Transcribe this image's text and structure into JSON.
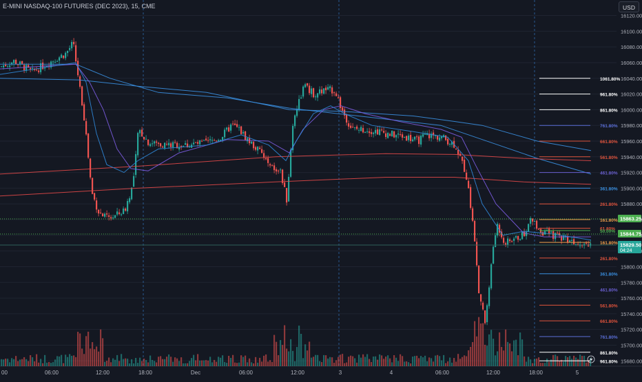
{
  "header": {
    "title": "E-MINI NASDAQ-100 FUTURES (DEC 2023), 15, CME",
    "currency_button": "USD"
  },
  "colors": {
    "background": "#141822",
    "up": "#26a69a",
    "down": "#ef5350",
    "grid": "#1f2431",
    "axis_text": "#b2b5be",
    "session_divider": "#2f6fb5",
    "price_line_green": "#4caf50"
  },
  "chart_data": {
    "type": "candlestick",
    "title": "E-MINI NASDAQ-100 FUTURES (DEC 2023), 15, CME",
    "y_axis_ticks": [
      16120,
      16100,
      16080,
      16060,
      16040,
      16020,
      16000,
      15980,
      15960,
      15940,
      15920,
      15900,
      15880,
      15860,
      15840,
      15820,
      15800,
      15780,
      15760,
      15740,
      15720,
      15700,
      15680
    ],
    "y_range": [
      15675,
      16131
    ],
    "x_axis_labels": [
      "00",
      "06:00",
      "12:00",
      "18:00",
      "Dec",
      "06:00",
      "12:00",
      "3",
      "4",
      "06:00",
      "12:00",
      "18:00",
      "5"
    ],
    "price_labels": [
      {
        "value": "15863.25",
        "color": "#4caf50"
      },
      {
        "value": "15844.75",
        "color": "#4caf50"
      },
      {
        "value": "15829.50",
        "sub": "04:24",
        "color": "#26a69a"
      }
    ],
    "fib_levels": [
      {
        "label": "1061.80%",
        "price": 16040,
        "color": "#ffffff"
      },
      {
        "label": "961.80%",
        "price": 16020,
        "color": "#ffffff"
      },
      {
        "label": "861.80%",
        "price": 16000,
        "color": "#ffffff"
      },
      {
        "label": "761.80%",
        "price": 15980,
        "color": "#5b6fd8"
      },
      {
        "label": "661.80%",
        "price": 15960,
        "color": "#e0533c"
      },
      {
        "label": "561.80%",
        "price": 15940,
        "color": "#e0533c"
      },
      {
        "label": "461.80%",
        "price": 15920,
        "color": "#6a5fd0"
      },
      {
        "label": "361.80%",
        "price": 15900,
        "color": "#3a8fe0"
      },
      {
        "label": "261.80%",
        "price": 15880,
        "color": "#e0533c"
      },
      {
        "label": "161.80%",
        "price": 15860,
        "color": "#f0a04b"
      },
      {
        "label": "61.80%",
        "price": 15849,
        "color": "#e0533c"
      },
      {
        "label": "50.00%",
        "price": 15846,
        "color": "#4caf50"
      },
      {
        "label": "161.80%",
        "price": 15831,
        "color": "#f0a04b"
      },
      {
        "label": "261.80%",
        "price": 15811,
        "color": "#e0533c"
      },
      {
        "label": "361.80%",
        "price": 15791,
        "color": "#3a8fe0"
      },
      {
        "label": "461.80%",
        "price": 15771,
        "color": "#6a5fd0"
      },
      {
        "label": "561.80%",
        "price": 15751,
        "color": "#e0533c"
      },
      {
        "label": "661.80%",
        "price": 15731,
        "color": "#e0533c"
      },
      {
        "label": "761.80%",
        "price": 15711,
        "color": "#5b6fd8"
      },
      {
        "label": "861.80%",
        "price": 15691,
        "color": "#ffffff"
      },
      {
        "label": "961.80%",
        "price": 15680,
        "color": "#ffffff"
      }
    ],
    "segments": [
      [
        0,
        16055
      ],
      [
        20,
        16062
      ],
      [
        45,
        16048
      ],
      [
        70,
        16060
      ],
      [
        95,
        16072
      ],
      [
        105,
        16085
      ],
      [
        112,
        16045
      ],
      [
        122,
        15985
      ],
      [
        132,
        15895
      ],
      [
        142,
        15870
      ],
      [
        152,
        15862
      ],
      [
        165,
        15864
      ],
      [
        180,
        15872
      ],
      [
        192,
        15905
      ],
      [
        200,
        15975
      ],
      [
        215,
        15958
      ],
      [
        245,
        15955
      ],
      [
        270,
        15955
      ],
      [
        300,
        15958
      ],
      [
        320,
        15965
      ],
      [
        335,
        15980
      ],
      [
        345,
        15976
      ],
      [
        360,
        15960
      ],
      [
        378,
        15945
      ],
      [
        392,
        15925
      ],
      [
        405,
        15925
      ],
      [
        415,
        15885
      ],
      [
        425,
        15990
      ],
      [
        440,
        16030
      ],
      [
        455,
        16020
      ],
      [
        470,
        16025
      ],
      [
        485,
        16025
      ],
      [
        495,
        16000
      ],
      [
        510,
        15975
      ],
      [
        530,
        15975
      ],
      [
        550,
        15972
      ],
      [
        570,
        15968
      ],
      [
        590,
        15965
      ],
      [
        605,
        15960
      ],
      [
        618,
        15968
      ],
      [
        640,
        15965
      ],
      [
        660,
        15955
      ],
      [
        675,
        15920
      ],
      [
        685,
        15860
      ],
      [
        695,
        15760
      ],
      [
        703,
        15730
      ],
      [
        712,
        15800
      ],
      [
        720,
        15855
      ],
      [
        732,
        15830
      ],
      [
        745,
        15835
      ],
      [
        758,
        15840
      ],
      [
        770,
        15860
      ],
      [
        785,
        15845
      ],
      [
        800,
        15840
      ],
      [
        815,
        15838
      ],
      [
        830,
        15833
      ],
      [
        845,
        15831
      ],
      [
        858,
        15829
      ]
    ],
    "moving_averages": [
      {
        "color": "#3a8fe0",
        "points": [
          [
            0,
            16040
          ],
          [
            115,
            16038
          ],
          [
            200,
            16030
          ],
          [
            300,
            16022
          ],
          [
            420,
            16000
          ],
          [
            495,
            15998
          ],
          [
            600,
            15992
          ],
          [
            660,
            15985
          ],
          [
            700,
            15980
          ],
          [
            780,
            15960
          ],
          [
            858,
            15948
          ]
        ]
      },
      {
        "color": "#3a8fe0",
        "points": [
          [
            0,
            16058
          ],
          [
            110,
            16058
          ],
          [
            160,
            16040
          ],
          [
            230,
            16022
          ],
          [
            330,
            16015
          ],
          [
            420,
            16002
          ],
          [
            540,
            15990
          ],
          [
            640,
            15980
          ],
          [
            700,
            15962
          ],
          [
            780,
            15938
          ],
          [
            858,
            15918
          ]
        ]
      },
      {
        "color": "#e04848",
        "points": [
          [
            0,
            15918
          ],
          [
            200,
            15928
          ],
          [
            400,
            15940
          ],
          [
            560,
            15944
          ],
          [
            660,
            15943
          ],
          [
            760,
            15938
          ],
          [
            858,
            15935
          ]
        ]
      },
      {
        "color": "#e04848",
        "points": [
          [
            0,
            15890
          ],
          [
            200,
            15900
          ],
          [
            400,
            15908
          ],
          [
            560,
            15914
          ],
          [
            660,
            15914
          ],
          [
            760,
            15908
          ],
          [
            858,
            15905
          ]
        ]
      },
      {
        "color": "#7b5ce0",
        "points": [
          [
            0,
            16052
          ],
          [
            110,
            16058
          ],
          [
            130,
            16035
          ],
          [
            150,
            16000
          ],
          [
            170,
            15950
          ],
          [
            190,
            15925
          ],
          [
            215,
            15922
          ],
          [
            260,
            15945
          ],
          [
            330,
            15962
          ],
          [
            390,
            15960
          ],
          [
            420,
            15945
          ],
          [
            440,
            15975
          ],
          [
            470,
            16000
          ],
          [
            495,
            16005
          ],
          [
            530,
            15995
          ],
          [
            580,
            15985
          ],
          [
            640,
            15975
          ],
          [
            670,
            15965
          ],
          [
            690,
            15930
          ],
          [
            720,
            15880
          ],
          [
            760,
            15843
          ],
          [
            790,
            15838
          ],
          [
            858,
            15838
          ]
        ]
      },
      {
        "color": "#2f86d6",
        "points": [
          [
            0,
            16045
          ],
          [
            110,
            16060
          ],
          [
            125,
            16035
          ],
          [
            140,
            15970
          ],
          [
            155,
            15930
          ],
          [
            180,
            15920
          ],
          [
            200,
            15935
          ],
          [
            230,
            15950
          ],
          [
            300,
            15955
          ],
          [
            350,
            15968
          ],
          [
            390,
            15955
          ],
          [
            415,
            15935
          ],
          [
            430,
            15960
          ],
          [
            455,
            15995
          ],
          [
            480,
            16005
          ],
          [
            500,
            15995
          ],
          [
            540,
            15980
          ],
          [
            600,
            15972
          ],
          [
            650,
            15965
          ],
          [
            680,
            15935
          ],
          [
            700,
            15880
          ],
          [
            730,
            15840
          ],
          [
            760,
            15845
          ],
          [
            800,
            15842
          ],
          [
            858,
            15834
          ]
        ]
      }
    ]
  }
}
